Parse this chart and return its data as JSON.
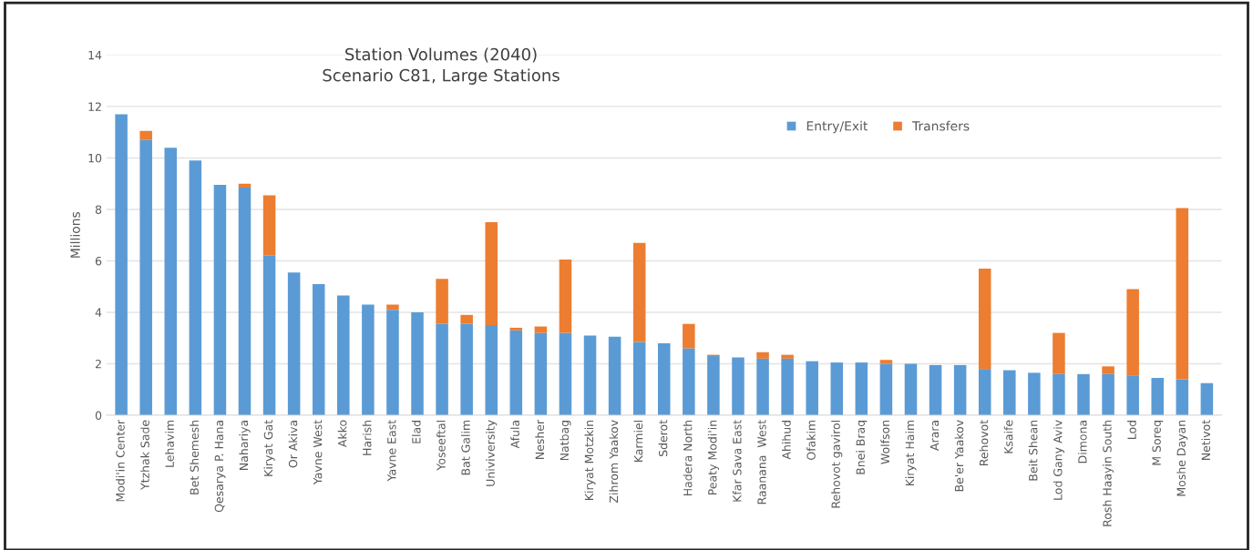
{
  "chart_data": {
    "type": "bar",
    "title": "Station Volumes (2040)\nScenario C81, Large Stations",
    "ylabel": "Millions",
    "stacked": true,
    "categories": [
      "Modi'in Center",
      "Ytzhak Sade",
      "Lehavim",
      "Bet Shemesh",
      "Qesarya P. Hana",
      "Nahariya",
      "Kiryat Gat",
      "Or Akiva",
      "Yavne West",
      "Akko",
      "Harish",
      "Yavne East",
      "Elad",
      "Yoseeftal",
      "Bat Galim",
      "Univiversity",
      "Afula",
      "Nesher",
      "Natbag",
      "Kiryat Motzkin",
      "Zihrom Yaakov",
      "Karmiel",
      "Sderot",
      "Hadera North",
      "Peaty Modi'in",
      "Kfar Sava East",
      "Raanana  West",
      "Ahihud",
      "Ofakim",
      "Rehovot gavirol",
      "Bnei Braq",
      "Wolfson",
      "Kiryat Haim",
      "Arara",
      "Be'er Yaakov",
      "Rehovot",
      "Ksaife",
      "Beit Shean",
      "Lod Gany Aviv",
      "Dimona",
      "Rosh Haayin South",
      "Lod",
      "M Soreq",
      "Moshe Dayan",
      "Netivot"
    ],
    "series": [
      {
        "name": "Entry/Exit",
        "color": "#5b9bd5",
        "values": [
          11.7,
          10.7,
          10.4,
          9.9,
          8.95,
          8.85,
          6.2,
          5.55,
          5.1,
          4.65,
          4.3,
          4.1,
          4.0,
          3.55,
          3.55,
          3.5,
          3.3,
          3.2,
          3.2,
          3.1,
          3.05,
          2.85,
          2.8,
          2.6,
          2.3,
          2.25,
          2.2,
          2.2,
          2.1,
          2.05,
          2.05,
          2.0,
          2.0,
          1.95,
          1.95,
          1.8,
          1.75,
          1.65,
          1.6,
          1.6,
          1.6,
          1.55,
          1.45,
          1.4,
          1.25
        ]
      },
      {
        "name": "Transfers",
        "color": "#ed7d31",
        "values": [
          0,
          0.35,
          0,
          0,
          0,
          0.15,
          2.35,
          0,
          0,
          0,
          0,
          0.2,
          0,
          1.75,
          0.35,
          4.0,
          0.1,
          0.25,
          2.85,
          0,
          0,
          3.85,
          0,
          0.95,
          0.05,
          0,
          0.25,
          0.15,
          0,
          0,
          0,
          0.15,
          0,
          0,
          0,
          3.9,
          0,
          0,
          1.6,
          0,
          0.3,
          3.35,
          0,
          6.65,
          0
        ]
      }
    ],
    "ylim": [
      0,
      14
    ],
    "yticks": [
      0,
      2,
      4,
      6,
      8,
      10,
      12,
      14
    ],
    "grid": "y",
    "legend": "top right"
  }
}
